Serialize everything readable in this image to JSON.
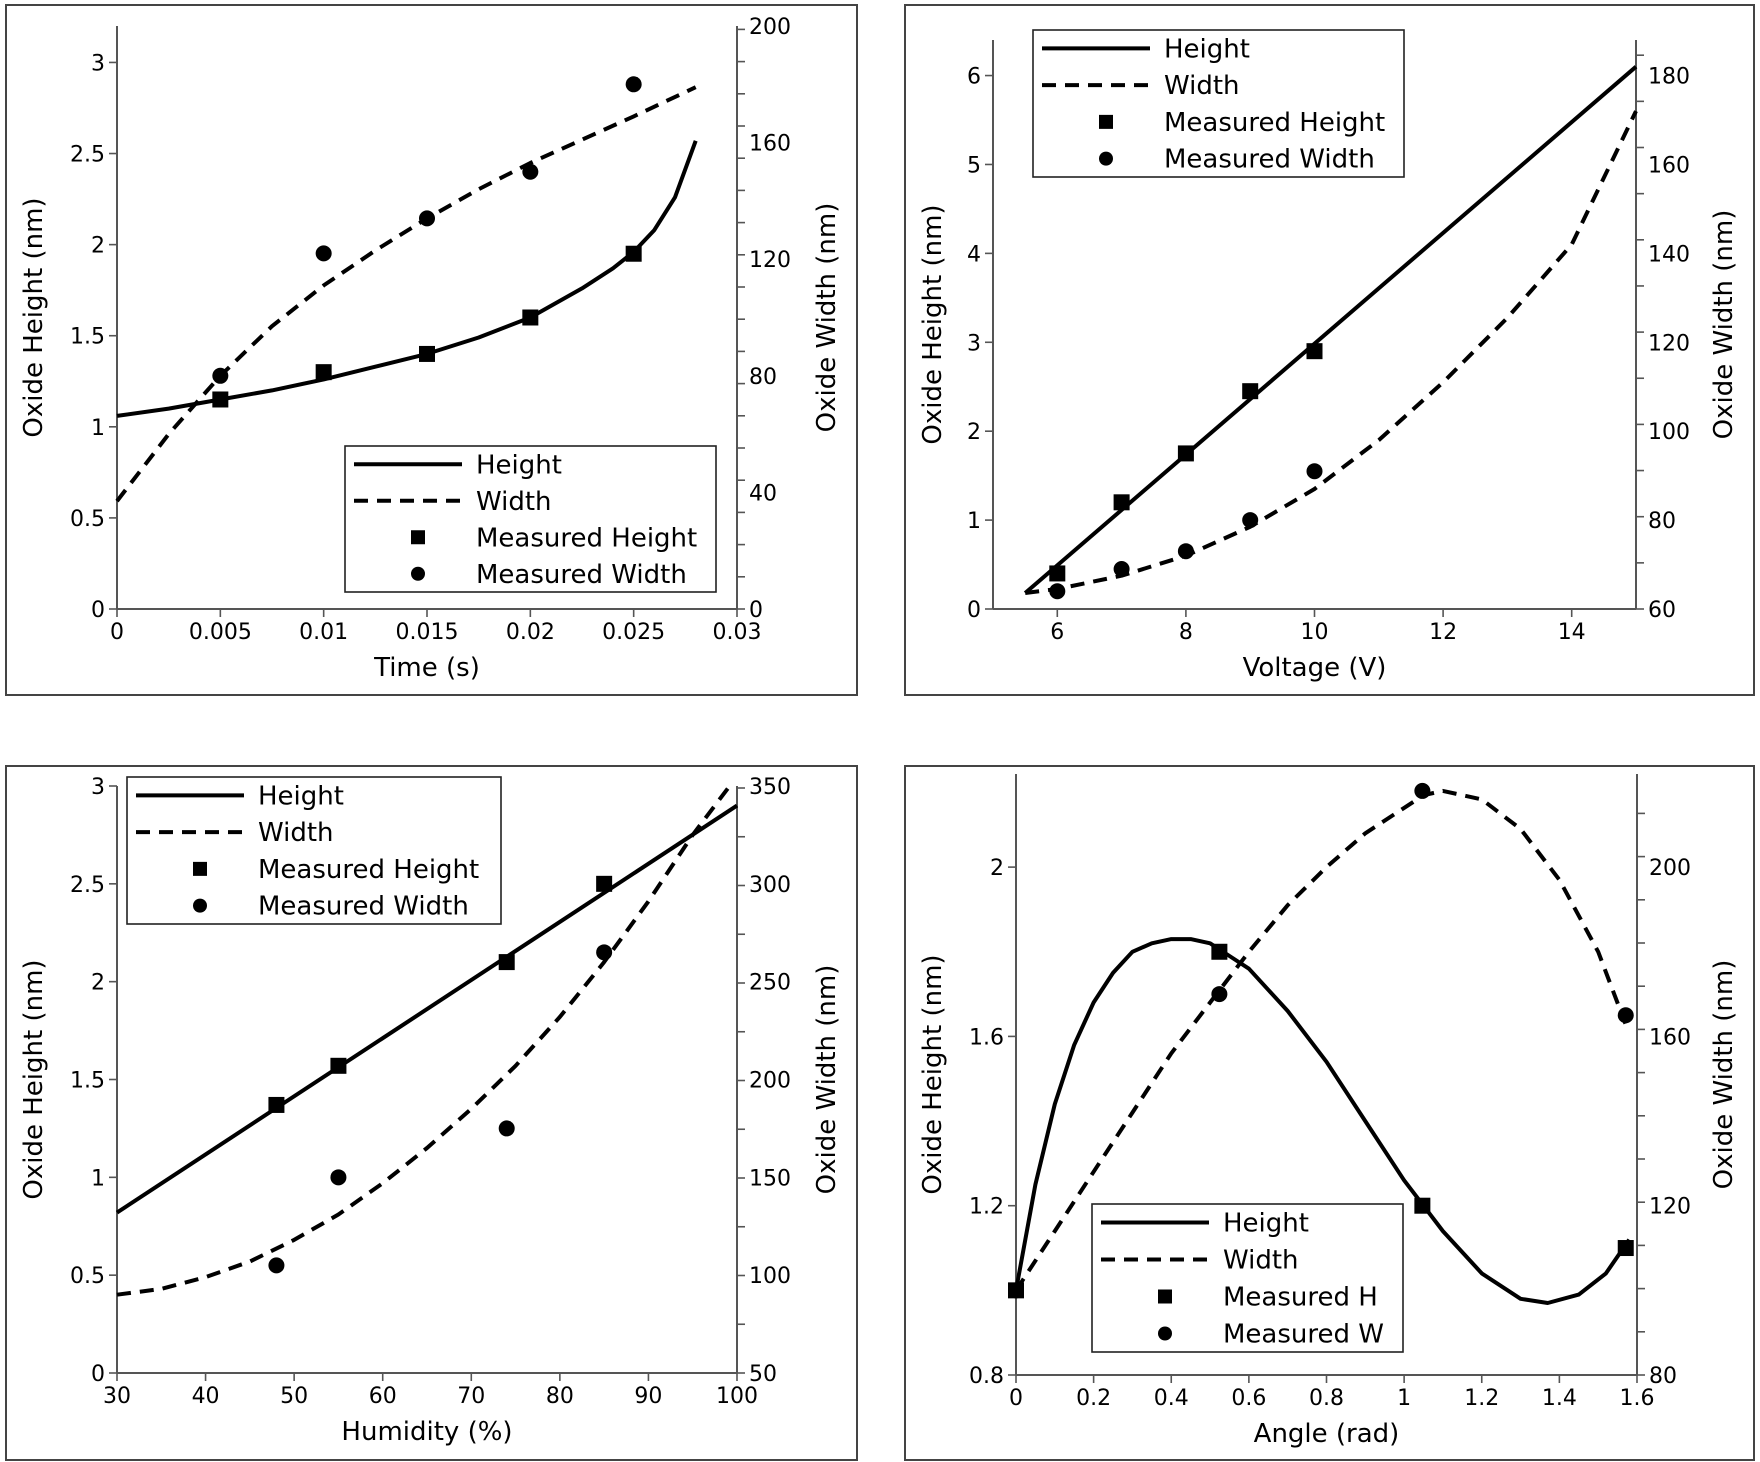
{
  "chart_data": [
    {
      "type": "line",
      "title": "",
      "xlabel": "Time (s)",
      "ylabel": "Oxide Height (nm)",
      "y2label": "Oxide Width (nm)",
      "xlim": [
        0,
        0.03
      ],
      "ylim": [
        0,
        3.2
      ],
      "y2lim": [
        0,
        200
      ],
      "xticks": [
        0,
        0.005,
        0.01,
        0.015,
        0.02,
        0.025,
        0.03
      ],
      "xticklabels": [
        "0",
        "0.005",
        "0.01",
        "0.015",
        "0.02",
        "0.025",
        "0.03"
      ],
      "yticks": [
        0,
        0.5,
        1,
        1.5,
        2,
        2.5,
        3
      ],
      "yticklabels": [
        "0",
        "0.5",
        "1",
        "1.5",
        "2",
        "2.5",
        "3"
      ],
      "y2ticks": [
        0,
        40,
        80,
        120,
        160,
        200
      ],
      "y2ticklabels": [
        "0",
        "40",
        "80",
        "120",
        "160",
        "200"
      ],
      "legend": {
        "location": "lower-right",
        "entries": [
          "Height",
          "Width",
          "Measured Height",
          "Measured Width"
        ]
      },
      "series": [
        {
          "name": "Height",
          "style": "solid",
          "axis": "left",
          "x": [
            0,
            0.0025,
            0.005,
            0.0075,
            0.01,
            0.0125,
            0.015,
            0.0175,
            0.02,
            0.0225,
            0.024,
            0.025,
            0.026,
            0.027,
            0.028
          ],
          "y": [
            1.06,
            1.1,
            1.15,
            1.2,
            1.26,
            1.33,
            1.4,
            1.49,
            1.6,
            1.76,
            1.87,
            1.96,
            2.08,
            2.26,
            2.57
          ]
        },
        {
          "name": "Width",
          "style": "dashed",
          "axis": "right",
          "x": [
            0,
            0.0025,
            0.005,
            0.0075,
            0.01,
            0.0125,
            0.015,
            0.0175,
            0.02,
            0.0225,
            0.025,
            0.028
          ],
          "y": [
            37,
            60,
            80,
            97,
            111,
            123,
            134,
            144,
            153,
            161,
            169,
            179
          ]
        },
        {
          "name": "Measured Height",
          "style": "square",
          "axis": "left",
          "x": [
            0.005,
            0.01,
            0.015,
            0.02,
            0.025
          ],
          "y": [
            1.15,
            1.3,
            1.4,
            1.6,
            1.95
          ]
        },
        {
          "name": "Measured Width",
          "style": "circle",
          "axis": "right",
          "x": [
            0.005,
            0.01,
            0.015,
            0.02,
            0.025
          ],
          "y": [
            80,
            122,
            134,
            150,
            180
          ]
        }
      ]
    },
    {
      "type": "line",
      "title": "",
      "xlabel": "Voltage (V)",
      "ylabel": "Oxide Height (nm)",
      "y2label": "Oxide Width (nm)",
      "xlim": [
        5,
        15
      ],
      "ylim": [
        0,
        6.4
      ],
      "y2lim": [
        60,
        188
      ],
      "xticks": [
        6,
        8,
        10,
        12,
        14
      ],
      "xticklabels": [
        "6",
        "8",
        "10",
        "12",
        "14"
      ],
      "yticks": [
        0,
        1,
        2,
        3,
        4,
        5,
        6
      ],
      "yticklabels": [
        "0",
        "1",
        "2",
        "3",
        "4",
        "5",
        "6"
      ],
      "y2ticks": [
        60,
        80,
        100,
        120,
        140,
        160,
        180
      ],
      "y2ticklabels": [
        "60",
        "80",
        "100",
        "120",
        "140",
        "160",
        "180"
      ],
      "legend": {
        "location": "upper-left",
        "entries": [
          "Height",
          "Width",
          "Measured Height",
          "Measured Width"
        ]
      },
      "series": [
        {
          "name": "Height",
          "style": "solid",
          "axis": "left",
          "x": [
            5.5,
            15
          ],
          "y": [
            0.18,
            6.1
          ]
        },
        {
          "name": "Width",
          "style": "dashed",
          "axis": "right",
          "x": [
            5.5,
            6,
            7,
            8,
            9,
            10,
            11,
            12,
            13,
            14,
            15
          ],
          "y": [
            63.6,
            64.5,
            67.5,
            72,
            78.5,
            87,
            98,
            111,
            125.5,
            142,
            172
          ]
        },
        {
          "name": "Measured Height",
          "style": "square",
          "axis": "left",
          "x": [
            6,
            7,
            8,
            9,
            10
          ],
          "y": [
            0.4,
            1.2,
            1.75,
            2.45,
            2.9
          ]
        },
        {
          "name": "Measured Width",
          "style": "circle",
          "axis": "right",
          "x": [
            6,
            7,
            8,
            9,
            10
          ],
          "y": [
            64,
            69,
            73,
            80,
            91
          ]
        }
      ]
    },
    {
      "type": "line",
      "title": "",
      "xlabel": "Humidity (%)",
      "ylabel": "Oxide Height (nm)",
      "y2label": "Oxide Width (nm)",
      "xlim": [
        30,
        100
      ],
      "ylim": [
        0,
        3.0
      ],
      "y2lim": [
        50,
        350
      ],
      "xticks": [
        30,
        40,
        50,
        60,
        70,
        80,
        90,
        100
      ],
      "xticklabels": [
        "30",
        "40",
        "50",
        "60",
        "70",
        "80",
        "90",
        "100"
      ],
      "yticks": [
        0,
        0.5,
        1,
        1.5,
        2,
        2.5,
        3
      ],
      "yticklabels": [
        "0",
        "0.5",
        "1",
        "1.5",
        "2",
        "2.5",
        "3"
      ],
      "y2ticks": [
        50,
        100,
        150,
        200,
        250,
        300,
        350
      ],
      "y2ticklabels": [
        "50",
        "100",
        "150",
        "200",
        "250",
        "300",
        "350"
      ],
      "legend": {
        "location": "upper-left",
        "entries": [
          "Height",
          "Width",
          "Measured Height",
          "Measured Width"
        ]
      },
      "series": [
        {
          "name": "Height",
          "style": "solid",
          "axis": "left",
          "x": [
            30,
            100
          ],
          "y": [
            0.82,
            2.9
          ]
        },
        {
          "name": "Width",
          "style": "dashed",
          "axis": "right",
          "x": [
            30,
            35,
            40,
            45,
            50,
            55,
            60,
            65,
            70,
            75,
            80,
            85,
            90,
            95,
            99.5
          ],
          "y": [
            90,
            93,
            99,
            107,
            118,
            131,
            147,
            165,
            185,
            207,
            232,
            260,
            291,
            325,
            352
          ]
        },
        {
          "name": "Measured Height",
          "style": "square",
          "axis": "left",
          "x": [
            48,
            55,
            74,
            85
          ],
          "y": [
            1.37,
            1.57,
            2.1,
            2.5
          ]
        },
        {
          "name": "Measured Width",
          "style": "circle",
          "axis": "right",
          "x": [
            48,
            55,
            74,
            85
          ],
          "y": [
            105,
            150,
            175,
            265
          ]
        }
      ]
    },
    {
      "type": "line",
      "title": "",
      "xlabel": "Angle (rad)",
      "ylabel": "Oxide Height (nm)",
      "y2label": "Oxide Width (nm)",
      "xlim": [
        0,
        1.6
      ],
      "ylim": [
        0.8,
        2.22
      ],
      "y2lim": [
        80,
        222
      ],
      "xticks": [
        0,
        0.2,
        0.4,
        0.6,
        0.8,
        1,
        1.2,
        1.4,
        1.6
      ],
      "xticklabels": [
        "0",
        "0.2",
        "0.4",
        "0.6",
        "0.8",
        "1",
        "1.2",
        "1.4",
        "1.6"
      ],
      "yticks": [
        0.8,
        1.2,
        1.6,
        2
      ],
      "yticklabels": [
        "0.8",
        "1.2",
        "1.6",
        "2"
      ],
      "y2ticks": [
        80,
        120,
        160,
        200
      ],
      "y2ticklabels": [
        "80",
        "120",
        "160",
        "200"
      ],
      "legend": {
        "location": "lower-center",
        "entries": [
          "Height",
          "Width",
          "Measured H",
          "Measured W"
        ]
      },
      "series": [
        {
          "name": "Height",
          "style": "solid",
          "axis": "left",
          "x": [
            0,
            0.05,
            0.1,
            0.15,
            0.2,
            0.25,
            0.3,
            0.35,
            0.4,
            0.45,
            0.5,
            0.55,
            0.6,
            0.7,
            0.8,
            0.9,
            1.0,
            1.05,
            1.1,
            1.2,
            1.3,
            1.37,
            1.45,
            1.52,
            1.58
          ],
          "y": [
            1.0,
            1.25,
            1.44,
            1.58,
            1.68,
            1.75,
            1.8,
            1.82,
            1.83,
            1.83,
            1.82,
            1.79,
            1.76,
            1.66,
            1.54,
            1.4,
            1.26,
            1.2,
            1.14,
            1.04,
            0.98,
            0.97,
            0.99,
            1.04,
            1.12
          ]
        },
        {
          "name": "Width",
          "style": "dashed",
          "axis": "right",
          "x": [
            0,
            0.1,
            0.2,
            0.3,
            0.4,
            0.5,
            0.6,
            0.7,
            0.8,
            0.9,
            1.0,
            1.05,
            1.1,
            1.2,
            1.3,
            1.4,
            1.5,
            1.57
          ],
          "y": [
            100,
            114,
            128,
            142,
            156,
            168,
            180,
            191,
            200,
            208,
            214,
            217,
            218,
            216,
            209,
            197,
            180,
            163
          ]
        },
        {
          "name": "Measured H",
          "style": "square",
          "axis": "left",
          "x": [
            0,
            0.524,
            1.047,
            1.571
          ],
          "y": [
            1.0,
            1.8,
            1.2,
            1.1
          ]
        },
        {
          "name": "Measured W",
          "style": "circle",
          "axis": "right",
          "x": [
            0,
            0.524,
            1.047,
            1.571
          ],
          "y": [
            100,
            170,
            218,
            165
          ]
        }
      ]
    }
  ]
}
